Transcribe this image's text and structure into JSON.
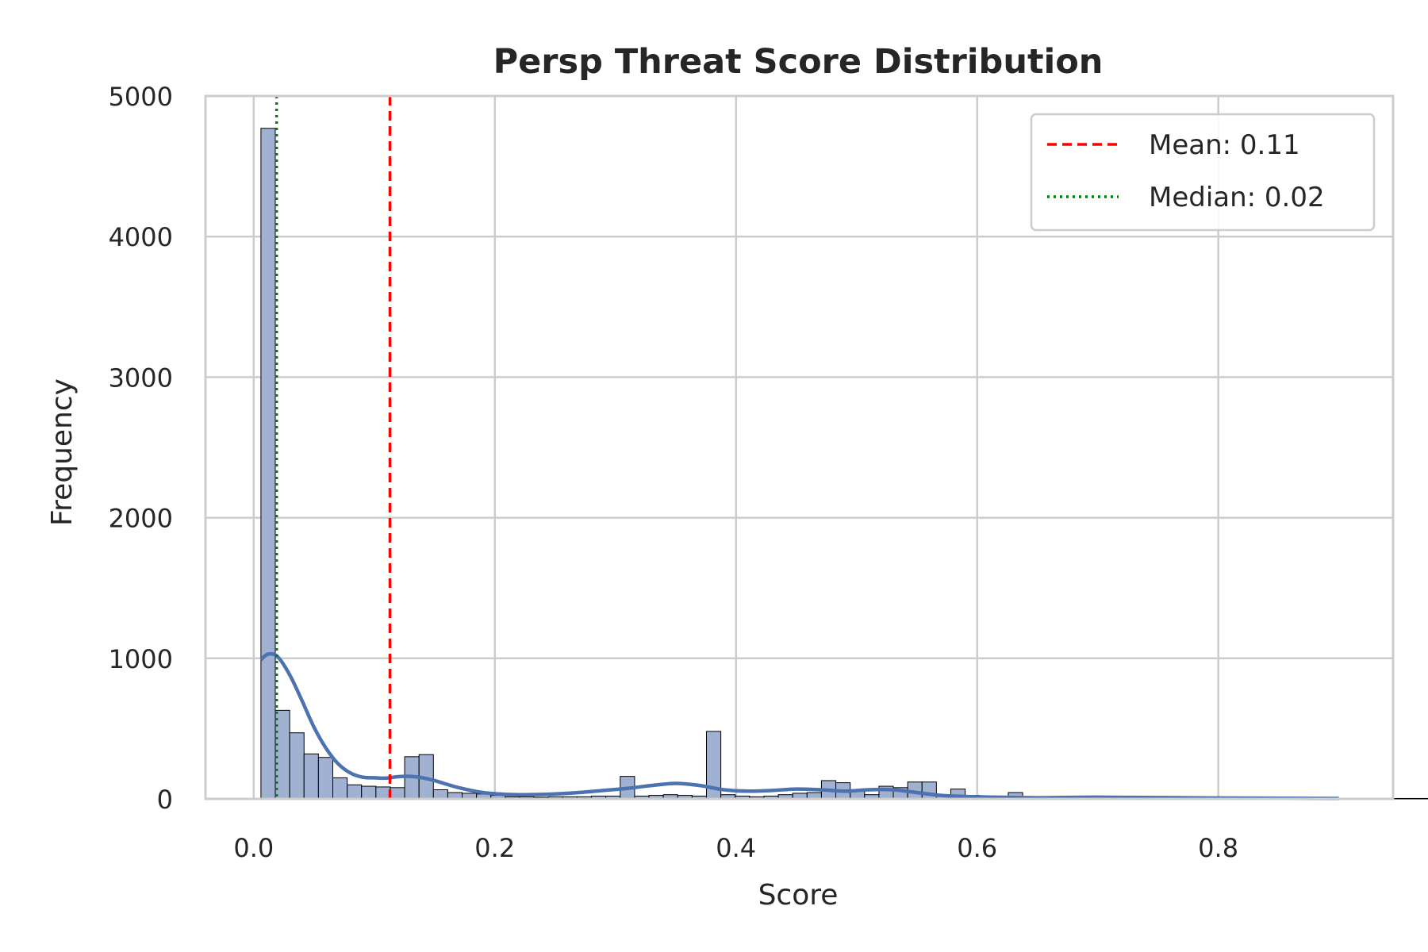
{
  "chart_data": {
    "type": "bar",
    "title": "Persp Threat Score Distribution",
    "xlabel": "Score",
    "ylabel": "Frequency",
    "xlim": [
      -0.04,
      0.945
    ],
    "ylim": [
      0,
      5000
    ],
    "xticks": [
      "0.0",
      "0.2",
      "0.4",
      "0.6",
      "0.8"
    ],
    "xtick_values": [
      0.0,
      0.2,
      0.4,
      0.6,
      0.8
    ],
    "yticks": [
      "0",
      "1000",
      "2000",
      "3000",
      "4000",
      "5000"
    ],
    "ytick_values": [
      0,
      1000,
      2000,
      3000,
      4000,
      5000
    ],
    "grid": true,
    "bin_start": 0.006,
    "bin_width": 0.01192,
    "frequencies": [
      4770,
      630,
      470,
      320,
      295,
      150,
      100,
      90,
      85,
      80,
      300,
      315,
      65,
      45,
      40,
      35,
      25,
      15,
      15,
      12,
      15,
      15,
      15,
      20,
      20,
      160,
      20,
      25,
      30,
      25,
      20,
      480,
      30,
      20,
      15,
      20,
      30,
      40,
      45,
      130,
      115,
      55,
      30,
      90,
      80,
      120,
      120,
      30,
      70,
      25,
      15,
      20,
      45,
      10,
      5,
      5,
      8,
      5,
      5,
      5,
      5,
      5,
      5,
      5,
      5,
      3,
      3,
      3,
      3,
      3,
      3,
      3,
      3,
      3,
      3,
      3,
      3,
      3,
      3,
      3,
      3,
      3,
      3,
      3,
      3,
      3,
      3,
      3,
      3,
      3,
      3,
      3,
      3
    ],
    "kde": {
      "x": [
        0.006,
        0.012,
        0.02,
        0.03,
        0.04,
        0.05,
        0.06,
        0.07,
        0.08,
        0.09,
        0.1,
        0.11,
        0.12,
        0.13,
        0.14,
        0.15,
        0.17,
        0.19,
        0.21,
        0.23,
        0.25,
        0.27,
        0.29,
        0.31,
        0.33,
        0.35,
        0.37,
        0.39,
        0.41,
        0.43,
        0.45,
        0.47,
        0.49,
        0.51,
        0.53,
        0.55,
        0.57,
        0.6,
        0.65,
        0.7,
        0.8,
        0.9
      ],
      "y": [
        990,
        1030,
        1010,
        880,
        700,
        510,
        360,
        250,
        185,
        155,
        150,
        148,
        158,
        160,
        150,
        130,
        80,
        45,
        32,
        30,
        35,
        45,
        60,
        75,
        95,
        110,
        95,
        65,
        55,
        60,
        70,
        65,
        55,
        65,
        65,
        45,
        25,
        15,
        8,
        12,
        6,
        3
      ]
    },
    "lines": [
      {
        "name": "Mean: 0.11",
        "x": 0.113,
        "color": "#ff0000",
        "style": "dashed"
      },
      {
        "name": "Median: 0.02",
        "x": 0.019,
        "color": "#008000",
        "style": "dotted"
      }
    ],
    "legend_position": "top-right",
    "colors": {
      "bar_fill": "#a0b1d2",
      "bar_edge": "#000000",
      "kde": "#4c72b0",
      "grid": "#cccccc",
      "spine": "#cccccc",
      "background": "#ffffff"
    }
  }
}
